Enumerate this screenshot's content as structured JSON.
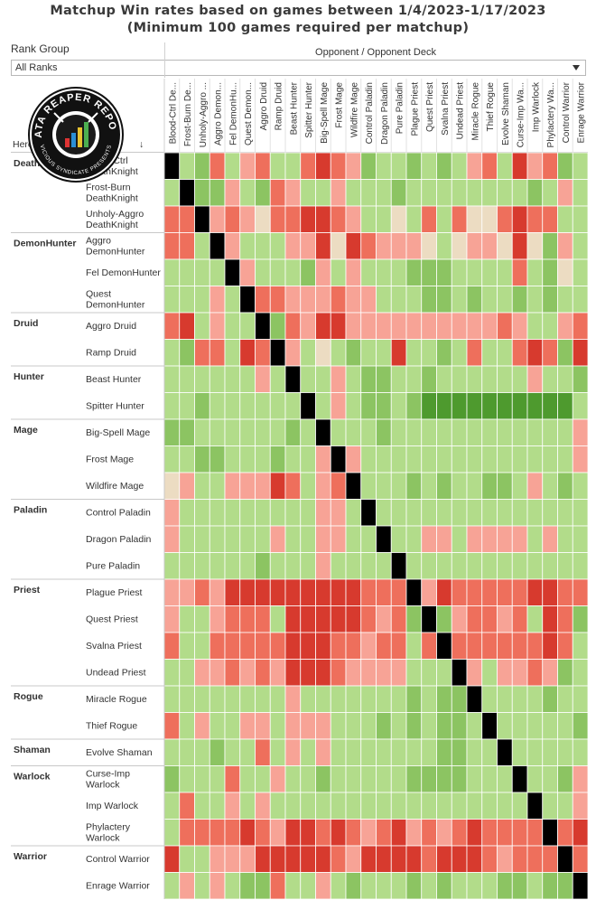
{
  "title": {
    "line1": "Matchup Win rates based on games between 1/4/2023-1/17/2023",
    "line2": "(Minimum 100 games required per matchup)"
  },
  "filter": {
    "label": "Rank Group",
    "selected": "All Ranks"
  },
  "column_header": "Opponent / Opponent Deck",
  "row_header": "Hero / Deck",
  "logo": {
    "name": "DATA REAPER REPORT",
    "tagline": "VICIOUS SYNDICATE PRESENTS"
  },
  "colors": {
    "dark_red": "#d73a2e",
    "red": "#ee6f5c",
    "light_red": "#f7a396",
    "neutral": "#ecdcc2",
    "light_green": "#b2dc8a",
    "green": "#8cc462",
    "dark_green": "#4e9a2e",
    "mirror": "#000000"
  },
  "chart_data": {
    "type": "heatmap",
    "title": "Matchup Win rates based on games between 1/4/2023-1/17/2023",
    "subtitle": "(Minimum 100 games required per matchup)",
    "value_scale": "-3 strong loss, -2 loss, -1 slight loss, 0 even, 1 slight win, 2 win, 3 strong win, null mirror",
    "groups": [
      {
        "hero": "DeathKnight",
        "decks": [
          "Blood-Ctrl DeathKnight",
          "Frost-Burn DeathKnight",
          "Unholy-Aggro DeathKnight"
        ]
      },
      {
        "hero": "DemonHunter",
        "decks": [
          "Aggro DemonHunter",
          "Fel DemonHunter",
          "Quest DemonHunter"
        ]
      },
      {
        "hero": "Druid",
        "decks": [
          "Aggro Druid",
          "Ramp Druid"
        ]
      },
      {
        "hero": "Hunter",
        "decks": [
          "Beast Hunter",
          "Spitter Hunter"
        ]
      },
      {
        "hero": "Mage",
        "decks": [
          "Big-Spell Mage",
          "Frost Mage",
          "Wildfire Mage"
        ]
      },
      {
        "hero": "Paladin",
        "decks": [
          "Control Paladin",
          "Dragon Paladin",
          "Pure Paladin"
        ]
      },
      {
        "hero": "Priest",
        "decks": [
          "Plague Priest",
          "Quest Priest",
          "Svalna Priest",
          "Undead Priest"
        ]
      },
      {
        "hero": "Rogue",
        "decks": [
          "Miracle Rogue",
          "Thief Rogue"
        ]
      },
      {
        "hero": "Shaman",
        "decks": [
          "Evolve Shaman"
        ]
      },
      {
        "hero": "Warlock",
        "decks": [
          "Curse-Imp Warlock",
          "Imp Warlock",
          "Phylactery Warlock"
        ]
      },
      {
        "hero": "Warrior",
        "decks": [
          "Control Warrior",
          "Enrage Warrior"
        ]
      }
    ],
    "columns": [
      "Blood-Ctrl De...",
      "Frost-Burn De...",
      "Unholy-Aggro ...",
      "Aggro Demon...",
      "Fel DemonHu...",
      "Quest Demon...",
      "Aggro Druid",
      "Ramp Druid",
      "Beast Hunter",
      "Spitter Hunter",
      "Big-Spell Mage",
      "Frost Mage",
      "Wildfire Mage",
      "Control Paladin",
      "Dragon Paladin",
      "Pure Paladin",
      "Plague Priest",
      "Quest Priest",
      "Svalna Priest",
      "Undead Priest",
      "Miracle Rogue",
      "Thief Rogue",
      "Evolve Shaman",
      "Curse-Imp Wa...",
      "Imp Warlock",
      "Phylactery Wa...",
      "Control Warrior",
      "Enrage Warrior"
    ],
    "values": [
      [
        null,
        1,
        2,
        -2,
        1,
        -1,
        -2,
        1,
        1,
        -2,
        -3,
        -2,
        -1,
        2,
        1,
        1,
        2,
        1,
        2,
        1,
        -1,
        -2,
        1,
        -3,
        -1,
        -2,
        2,
        1
      ],
      [
        1,
        null,
        2,
        2,
        -1,
        1,
        2,
        -2,
        -1,
        1,
        1,
        -1,
        1,
        1,
        1,
        2,
        1,
        1,
        1,
        1,
        1,
        1,
        1,
        1,
        2,
        1,
        -1,
        1
      ],
      [
        -2,
        -2,
        null,
        -1,
        -2,
        -1,
        0,
        -2,
        -2,
        -3,
        -3,
        -2,
        -1,
        1,
        1,
        0,
        1,
        -2,
        1,
        -2,
        0,
        0,
        -2,
        -3,
        -2,
        -2,
        1,
        1
      ],
      [
        -2,
        -2,
        1,
        null,
        -1,
        1,
        1,
        1,
        -1,
        -1,
        -3,
        0,
        -3,
        -2,
        -1,
        -1,
        -1,
        0,
        1,
        0,
        -1,
        -1,
        0,
        -3,
        0,
        2,
        -1,
        1
      ],
      [
        1,
        1,
        1,
        1,
        null,
        -1,
        1,
        1,
        1,
        2,
        -1,
        1,
        -1,
        1,
        1,
        1,
        2,
        2,
        2,
        1,
        1,
        1,
        1,
        -2,
        1,
        2,
        0,
        1
      ],
      [
        1,
        1,
        1,
        -1,
        1,
        null,
        -2,
        -2,
        -1,
        -1,
        -1,
        -2,
        -1,
        -1,
        1,
        1,
        1,
        2,
        2,
        1,
        2,
        1,
        1,
        2,
        1,
        2,
        1,
        1
      ],
      [
        -2,
        -3,
        1,
        -1,
        1,
        1,
        null,
        2,
        -2,
        -1,
        -3,
        -3,
        -1,
        -1,
        -1,
        -1,
        -1,
        -1,
        -1,
        -1,
        -1,
        -1,
        -2,
        -1,
        1,
        1,
        -1,
        -2
      ],
      [
        1,
        2,
        -2,
        -2,
        1,
        -3,
        -2,
        null,
        -1,
        1,
        0,
        1,
        2,
        1,
        1,
        -3,
        1,
        1,
        2,
        1,
        -2,
        1,
        1,
        -2,
        -3,
        -2,
        2,
        -3
      ],
      [
        1,
        1,
        1,
        1,
        1,
        1,
        -1,
        1,
        null,
        1,
        1,
        -1,
        1,
        2,
        2,
        1,
        1,
        2,
        1,
        1,
        1,
        1,
        1,
        1,
        -1,
        1,
        1,
        2
      ],
      [
        1,
        1,
        2,
        1,
        1,
        1,
        1,
        1,
        1,
        null,
        1,
        -1,
        1,
        2,
        2,
        1,
        2,
        3,
        3,
        3,
        3,
        3,
        3,
        3,
        3,
        3,
        3,
        1
      ],
      [
        2,
        2,
        1,
        1,
        1,
        1,
        1,
        1,
        2,
        1,
        null,
        1,
        1,
        1,
        2,
        1,
        1,
        1,
        1,
        1,
        1,
        1,
        1,
        1,
        1,
        1,
        1,
        -1
      ],
      [
        1,
        1,
        2,
        2,
        1,
        1,
        1,
        2,
        1,
        1,
        -1,
        null,
        -1,
        1,
        1,
        1,
        1,
        1,
        1,
        1,
        1,
        1,
        1,
        1,
        1,
        1,
        1,
        -1
      ],
      [
        0,
        -1,
        1,
        1,
        -1,
        -1,
        -1,
        -3,
        -2,
        1,
        -1,
        -2,
        null,
        1,
        1,
        1,
        2,
        1,
        2,
        1,
        1,
        2,
        2,
        1,
        -1,
        1,
        2,
        1
      ],
      [
        -1,
        1,
        1,
        1,
        1,
        1,
        1,
        1,
        1,
        1,
        -1,
        -1,
        1,
        null,
        1,
        1,
        1,
        1,
        1,
        1,
        1,
        1,
        1,
        1,
        1,
        1,
        1,
        1
      ],
      [
        -1,
        1,
        1,
        1,
        1,
        1,
        1,
        -1,
        1,
        1,
        -1,
        -1,
        1,
        1,
        null,
        1,
        1,
        -1,
        -1,
        1,
        -1,
        -1,
        -1,
        -1,
        1,
        -1,
        1,
        1
      ],
      [
        1,
        1,
        1,
        1,
        1,
        1,
        2,
        1,
        1,
        1,
        -1,
        1,
        1,
        1,
        1,
        null,
        1,
        1,
        1,
        1,
        1,
        1,
        1,
        1,
        1,
        1,
        1,
        1
      ],
      [
        -1,
        -1,
        -2,
        -1,
        -3,
        -3,
        -3,
        -3,
        -3,
        -3,
        -3,
        -3,
        -3,
        -2,
        -2,
        -2,
        null,
        -1,
        -3,
        -2,
        -2,
        -2,
        -2,
        -2,
        -3,
        -3,
        -2,
        -2
      ],
      [
        -1,
        1,
        1,
        -1,
        -2,
        -2,
        -2,
        1,
        -3,
        -3,
        -3,
        -3,
        -3,
        -2,
        -1,
        -2,
        2,
        null,
        2,
        -1,
        -2,
        -2,
        -1,
        -2,
        1,
        -3,
        -2,
        2
      ],
      [
        -2,
        1,
        1,
        -2,
        -2,
        -2,
        -2,
        -2,
        -3,
        -3,
        -3,
        -2,
        -2,
        -1,
        -2,
        -2,
        1,
        -2,
        null,
        -2,
        -2,
        -2,
        -2,
        -2,
        -2,
        -3,
        -2,
        1
      ],
      [
        1,
        1,
        -1,
        -1,
        -2,
        -1,
        -2,
        -1,
        -3,
        -3,
        -3,
        -2,
        -1,
        -1,
        -1,
        -1,
        1,
        1,
        1,
        null,
        -1,
        1,
        -1,
        -1,
        -2,
        -1,
        2,
        1
      ],
      [
        1,
        1,
        1,
        1,
        1,
        1,
        1,
        1,
        -1,
        1,
        1,
        1,
        1,
        1,
        1,
        1,
        2,
        1,
        2,
        2,
        null,
        1,
        1,
        1,
        1,
        2,
        1,
        1
      ],
      [
        -2,
        1,
        -1,
        1,
        1,
        -1,
        -1,
        1,
        -1,
        -1,
        -1,
        1,
        1,
        1,
        2,
        1,
        2,
        1,
        2,
        2,
        1,
        null,
        1,
        1,
        1,
        1,
        1,
        2
      ],
      [
        1,
        1,
        1,
        2,
        1,
        1,
        -2,
        1,
        -1,
        1,
        -1,
        1,
        1,
        1,
        1,
        1,
        1,
        1,
        2,
        2,
        1,
        1,
        null,
        1,
        1,
        1,
        1,
        1
      ],
      [
        2,
        1,
        1,
        1,
        -2,
        1,
        1,
        -1,
        1,
        1,
        2,
        1,
        1,
        1,
        1,
        1,
        2,
        2,
        2,
        2,
        1,
        1,
        1,
        null,
        1,
        1,
        2,
        -1
      ],
      [
        1,
        -2,
        1,
        1,
        -1,
        1,
        -1,
        1,
        1,
        1,
        1,
        1,
        1,
        1,
        1,
        1,
        1,
        1,
        1,
        1,
        1,
        1,
        1,
        1,
        null,
        1,
        1,
        -1
      ],
      [
        1,
        -2,
        -2,
        -2,
        -2,
        -3,
        -2,
        -1,
        -3,
        -3,
        -2,
        -3,
        -2,
        -1,
        -2,
        -3,
        -1,
        -2,
        -1,
        -2,
        -3,
        -2,
        -2,
        -2,
        -2,
        null,
        -2,
        -3
      ],
      [
        -3,
        1,
        1,
        -1,
        -1,
        -1,
        -3,
        -3,
        -3,
        -3,
        -3,
        -2,
        -1,
        -3,
        -3,
        -3,
        -3,
        -2,
        -3,
        -3,
        -3,
        -2,
        -1,
        -2,
        -2,
        -2,
        null,
        -2
      ],
      [
        1,
        -1,
        1,
        -1,
        1,
        2,
        2,
        -2,
        1,
        1,
        -1,
        1,
        2,
        1,
        1,
        1,
        2,
        1,
        2,
        1,
        1,
        1,
        2,
        2,
        1,
        2,
        2,
        null
      ]
    ]
  }
}
